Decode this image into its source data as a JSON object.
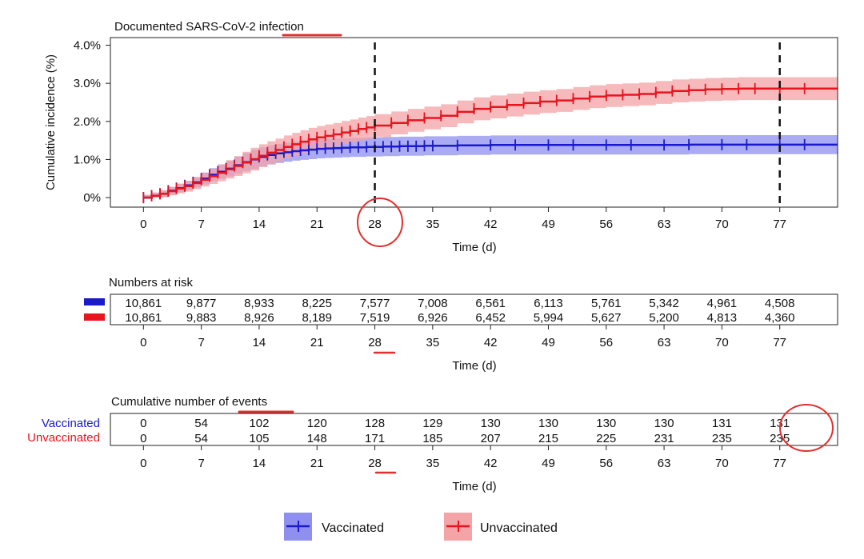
{
  "chart_data": {
    "type": "line",
    "title": "Documented SARS-CoV-2 infection",
    "xlabel": "Time (d)",
    "ylabel": "Cumulative incidence (%)",
    "xlim": [
      -4,
      84
    ],
    "ylim": [
      -0.25,
      4.2
    ],
    "x_ticks": [
      0,
      7,
      14,
      21,
      28,
      35,
      42,
      49,
      56,
      63,
      70,
      77
    ],
    "y_ticks": [
      0,
      1,
      2,
      3,
      4
    ],
    "y_tick_labels": [
      "0%",
      "1.0%",
      "2.0%",
      "3.0%",
      "4.0%"
    ],
    "reference_lines_x": [
      28,
      77
    ],
    "colors": {
      "vaccinated": "#1a1acc",
      "unvaccinated": "#e8141e",
      "vaccinated_band": "#8f8ff0",
      "unvaccinated_band": "#f4a3a6",
      "annotation": "#e0302e"
    },
    "series": [
      {
        "name": "Vaccinated",
        "x": [
          0,
          1,
          2,
          3,
          4,
          5,
          6,
          7,
          8,
          9,
          10,
          11,
          12,
          13,
          14,
          15,
          16,
          17,
          18,
          19,
          20,
          21,
          22,
          23,
          24,
          25,
          26,
          27,
          28,
          29,
          30,
          31,
          32,
          33,
          34,
          35,
          38,
          42,
          45,
          49,
          52,
          56,
          59,
          63,
          66,
          70,
          73,
          77,
          80
        ],
        "y": [
          0,
          0.05,
          0.1,
          0.18,
          0.25,
          0.32,
          0.4,
          0.5,
          0.6,
          0.68,
          0.76,
          0.85,
          0.93,
          1.0,
          1.07,
          1.12,
          1.16,
          1.19,
          1.22,
          1.24,
          1.26,
          1.28,
          1.29,
          1.3,
          1.31,
          1.32,
          1.32,
          1.33,
          1.33,
          1.34,
          1.34,
          1.35,
          1.35,
          1.35,
          1.36,
          1.36,
          1.37,
          1.38,
          1.38,
          1.38,
          1.38,
          1.38,
          1.38,
          1.38,
          1.39,
          1.39,
          1.39,
          1.39,
          1.39
        ],
        "band": 0.25
      },
      {
        "name": "Unvaccinated",
        "x": [
          0,
          1,
          2,
          3,
          4,
          5,
          6,
          7,
          8,
          9,
          10,
          11,
          12,
          13,
          14,
          15,
          16,
          17,
          18,
          19,
          20,
          21,
          22,
          23,
          24,
          25,
          26,
          27,
          28,
          30,
          32,
          34,
          36,
          38,
          40,
          42,
          44,
          46,
          48,
          50,
          52,
          54,
          56,
          58,
          60,
          62,
          64,
          66,
          68,
          70,
          72,
          74,
          77,
          80
        ],
        "y": [
          0,
          0.05,
          0.1,
          0.17,
          0.24,
          0.3,
          0.38,
          0.47,
          0.56,
          0.65,
          0.74,
          0.83,
          0.92,
          1.01,
          1.1,
          1.18,
          1.25,
          1.33,
          1.4,
          1.47,
          1.53,
          1.58,
          1.62,
          1.66,
          1.71,
          1.75,
          1.8,
          1.84,
          1.89,
          1.96,
          2.03,
          2.09,
          2.15,
          2.25,
          2.33,
          2.38,
          2.43,
          2.48,
          2.52,
          2.55,
          2.6,
          2.65,
          2.68,
          2.7,
          2.72,
          2.76,
          2.8,
          2.82,
          2.84,
          2.85,
          2.86,
          2.86,
          2.86,
          2.86
        ],
        "band": 0.3
      }
    ]
  },
  "risk_table": {
    "title": "Numbers at risk",
    "rows": [
      {
        "values": [
          "10,861",
          "9,877",
          "8,933",
          "8,225",
          "7,577",
          "7,008",
          "6,561",
          "6,113",
          "5,761",
          "5,342",
          "4,961",
          "4,508"
        ]
      },
      {
        "values": [
          "10,861",
          "9,883",
          "8,926",
          "8,189",
          "7,519",
          "6,926",
          "6,452",
          "5,994",
          "5,627",
          "5,200",
          "4,813",
          "4,360"
        ]
      }
    ],
    "ticks": [
      "0",
      "7",
      "14",
      "21",
      "28",
      "35",
      "42",
      "49",
      "56",
      "63",
      "70",
      "77"
    ],
    "xlabel": "Time (d)"
  },
  "events_table": {
    "title": "Cumulative number of events",
    "rows": [
      {
        "label": "Vaccinated",
        "values": [
          "0",
          "54",
          "102",
          "120",
          "128",
          "129",
          "130",
          "130",
          "130",
          "130",
          "131",
          "131"
        ]
      },
      {
        "label": "Unvaccinated",
        "values": [
          "0",
          "54",
          "105",
          "148",
          "171",
          "185",
          "207",
          "215",
          "225",
          "231",
          "235",
          "235"
        ]
      }
    ],
    "ticks": [
      "0",
      "7",
      "14",
      "21",
      "28",
      "35",
      "42",
      "49",
      "56",
      "63",
      "70",
      "77"
    ],
    "xlabel": "Time (d)"
  },
  "legend": {
    "items": [
      {
        "label": "Vaccinated"
      },
      {
        "label": "Unvaccinated"
      }
    ]
  }
}
